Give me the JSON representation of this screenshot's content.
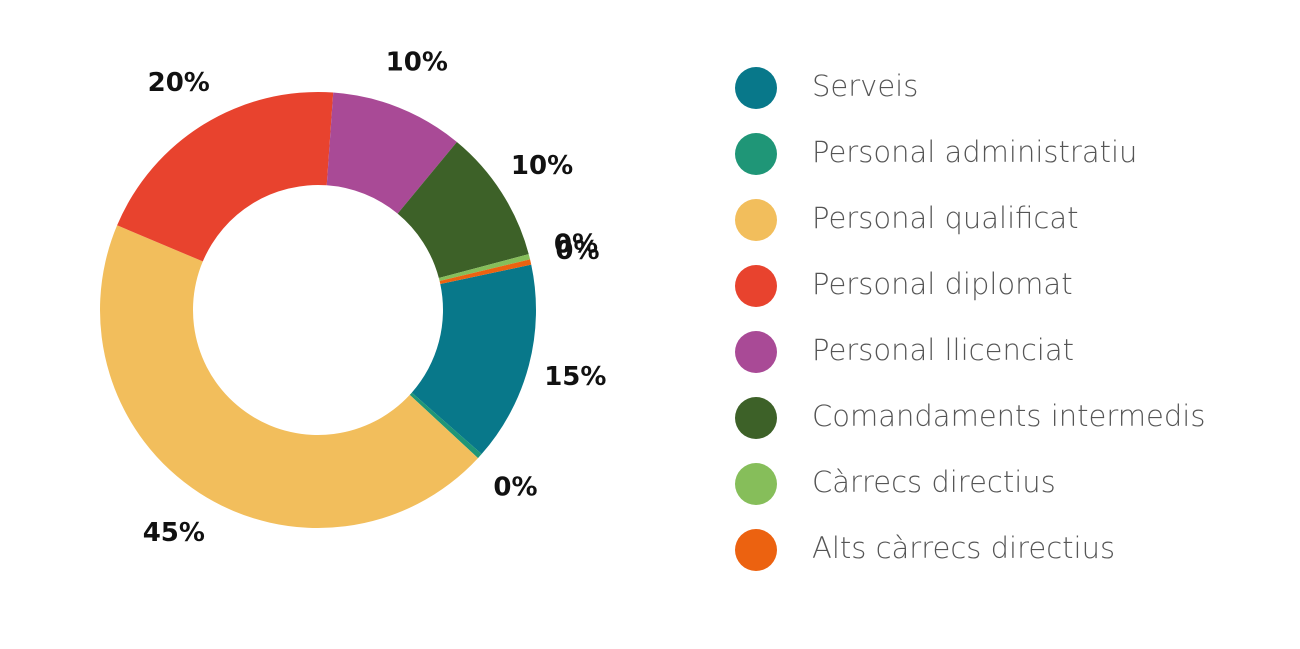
{
  "chart_data": {
    "type": "donut",
    "categories": [
      "Serveis",
      "Personal administratiu",
      "Personal qualificat",
      "Personal diplomat",
      "Personal llicenciat",
      "Comandaments intermedis",
      "Càrrecs directius",
      "Alts càrrecs directius"
    ],
    "values": [
      15,
      0.4,
      45,
      20,
      10,
      10,
      0.4,
      0.4
    ],
    "value_labels": [
      "15%",
      "0%",
      "45%",
      "20%",
      "10%",
      "10%",
      "0%",
      "0%"
    ],
    "colors": [
      "#08788a",
      "#1f9677",
      "#f2be5c",
      "#e8432e",
      "#a94a96",
      "#3d6128",
      "#86be5a",
      "#ec6210"
    ],
    "legend": "right"
  }
}
